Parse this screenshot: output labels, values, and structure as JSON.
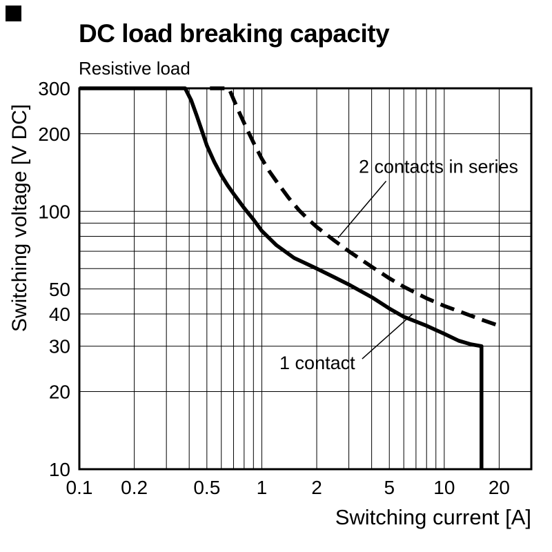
{
  "colors": {
    "ink": "#000000",
    "background": "#ffffff"
  },
  "chart_data": {
    "type": "line",
    "title": "DC load breaking capacity",
    "subtitle": "Resistive load",
    "xlabel": "Switching current [A]",
    "ylabel": "Switching voltage [V DC]",
    "xscale": "log",
    "yscale": "log",
    "xlim": [
      0.1,
      30
    ],
    "ylim": [
      10,
      300
    ],
    "grid_on": true,
    "grid": {
      "x": [
        0.2,
        0.3,
        0.4,
        0.5,
        0.6,
        0.7,
        0.8,
        0.9,
        1,
        2,
        3,
        4,
        5,
        6,
        7,
        8,
        9,
        10,
        20
      ],
      "y": [
        20,
        30,
        40,
        50,
        60,
        70,
        80,
        90,
        100,
        200
      ]
    },
    "xticks": [
      {
        "v": 0.1,
        "label": "0.1"
      },
      {
        "v": 0.2,
        "label": "0.2"
      },
      {
        "v": 0.5,
        "label": "0.5"
      },
      {
        "v": 1,
        "label": "1"
      },
      {
        "v": 2,
        "label": "2"
      },
      {
        "v": 5,
        "label": "5"
      },
      {
        "v": 10,
        "label": "10"
      },
      {
        "v": 20,
        "label": "20"
      }
    ],
    "yticks": [
      {
        "v": 10,
        "label": "10"
      },
      {
        "v": 20,
        "label": "20"
      },
      {
        "v": 30,
        "label": "30"
      },
      {
        "v": 40,
        "label": "40"
      },
      {
        "v": 50,
        "label": "50"
      },
      {
        "v": 100,
        "label": "100"
      },
      {
        "v": 200,
        "label": "200"
      },
      {
        "v": 300,
        "label": "300"
      }
    ],
    "series": [
      {
        "id": "one-contact",
        "name": "1 contact",
        "style": "solid",
        "points": [
          [
            0.1,
            300
          ],
          [
            0.38,
            300
          ],
          [
            0.41,
            270
          ],
          [
            0.44,
            235
          ],
          [
            0.47,
            205
          ],
          [
            0.5,
            180
          ],
          [
            0.55,
            155
          ],
          [
            0.6,
            138
          ],
          [
            0.65,
            126
          ],
          [
            0.7,
            117
          ],
          [
            0.8,
            103
          ],
          [
            0.9,
            93
          ],
          [
            1.0,
            84
          ],
          [
            1.2,
            74
          ],
          [
            1.5,
            66
          ],
          [
            2.0,
            60
          ],
          [
            2.5,
            55.5
          ],
          [
            3.0,
            52
          ],
          [
            4.0,
            46.5
          ],
          [
            5.0,
            42
          ],
          [
            6.0,
            39
          ],
          [
            8.0,
            36
          ],
          [
            10,
            33.5
          ],
          [
            12,
            31.5
          ],
          [
            14,
            30.5
          ],
          [
            16,
            30
          ],
          [
            16,
            10
          ]
        ]
      },
      {
        "id": "two-contacts-in-series",
        "name": "2 contacts in series",
        "style": "dashed",
        "points": [
          [
            0.52,
            300
          ],
          [
            0.66,
            300
          ],
          [
            0.7,
            272
          ],
          [
            0.75,
            243
          ],
          [
            0.8,
            220
          ],
          [
            0.85,
            201
          ],
          [
            0.9,
            185
          ],
          [
            1.0,
            160
          ],
          [
            1.1,
            143
          ],
          [
            1.2,
            131
          ],
          [
            1.4,
            113
          ],
          [
            1.6,
            101
          ],
          [
            1.8,
            93
          ],
          [
            2.0,
            87
          ],
          [
            2.5,
            77
          ],
          [
            3.0,
            70
          ],
          [
            4.0,
            61
          ],
          [
            5.0,
            55
          ],
          [
            6.0,
            51
          ],
          [
            8.0,
            46
          ],
          [
            10,
            43
          ],
          [
            12,
            41
          ],
          [
            16,
            38
          ],
          [
            20,
            36
          ]
        ]
      }
    ],
    "annotations": [
      {
        "text": "2 contacts in series",
        "at": [
          3.4,
          141
        ],
        "anchor": "start",
        "line": [
          [
            4.8,
            131
          ],
          [
            2.62,
            79
          ]
        ]
      },
      {
        "text": "1 contact",
        "at": [
          1.25,
          24.4
        ],
        "anchor": "start",
        "line": [
          [
            3.55,
            26.8
          ],
          [
            6.7,
            40
          ]
        ]
      }
    ],
    "legend_position": "none"
  }
}
